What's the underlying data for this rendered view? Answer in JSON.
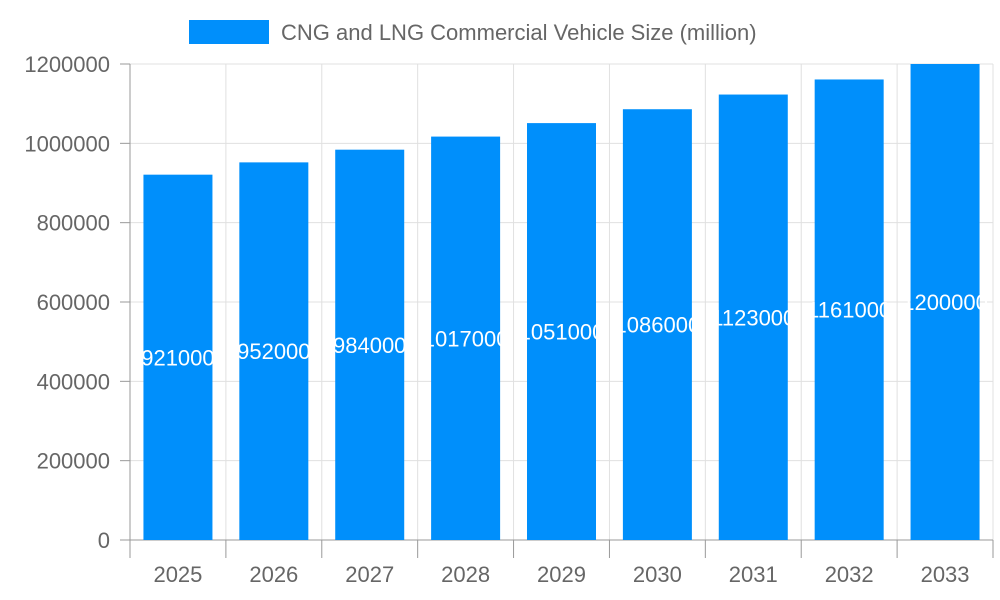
{
  "chart_data": {
    "type": "bar",
    "categories": [
      "2025",
      "2026",
      "2027",
      "2028",
      "2029",
      "2030",
      "2031",
      "2032",
      "2033"
    ],
    "series": [
      {
        "name": "CNG and LNG Commercial Vehicle Size (million)",
        "values": [
          921000,
          952000,
          984000,
          1017000,
          1051000,
          1086000,
          1123000,
          1161000,
          1200000
        ],
        "color": "#008ffb"
      }
    ],
    "yticks": [
      0,
      200000,
      400000,
      600000,
      800000,
      1000000,
      1200000
    ],
    "ylim": [
      0,
      1200000
    ],
    "grid": true,
    "legend": "top",
    "data_labels": true
  }
}
